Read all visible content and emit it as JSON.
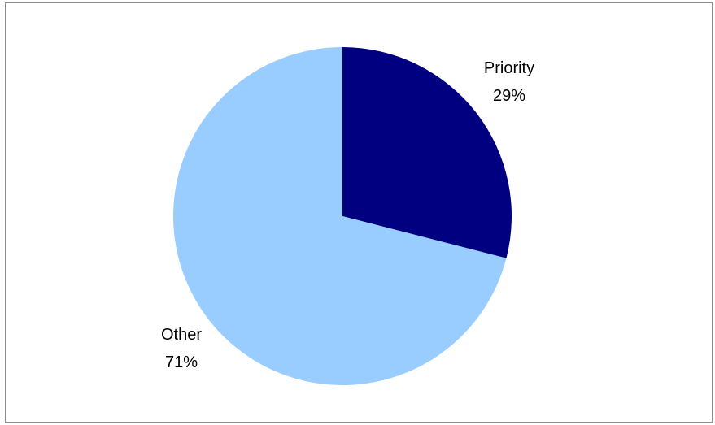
{
  "chart_data": {
    "type": "pie",
    "title": "",
    "categories": [
      "Priority",
      "Other"
    ],
    "values": [
      29,
      71
    ],
    "percent_labels": [
      "29%",
      "71%"
    ],
    "colors": [
      "#000080",
      "#99ccff"
    ],
    "legend": "none",
    "start_angle": "12 o'clock",
    "direction": "clockwise"
  }
}
